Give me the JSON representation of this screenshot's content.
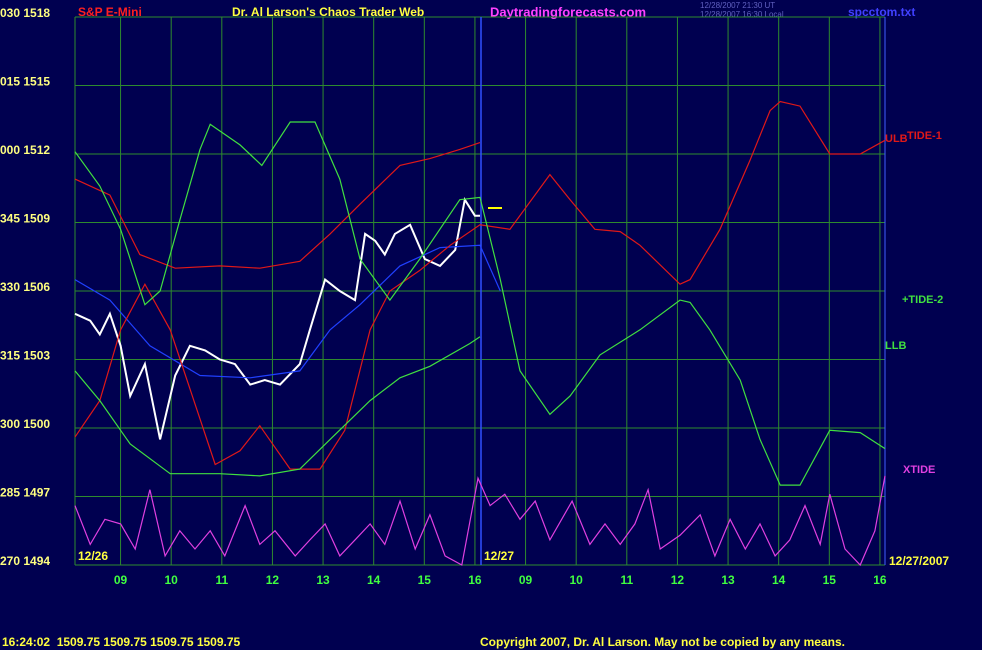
{
  "chart_data": {
    "type": "line",
    "title": "Dr. Al Larson's Chaos Trader Web",
    "symbol": "S&P E-Mini",
    "site": "Daytradingforecasts.com",
    "timestamps": [
      "12/28/2007 21:30 UT",
      "12/28/2007 16:30 Local"
    ],
    "file": "spcctom.txt",
    "date_labels": [
      "12/26",
      "12/27",
      "12/27/2007"
    ],
    "status": "16:24:02  1509.75 1509.75 1509.75 1509.75",
    "copyright": "Copyright 2007, Dr. Al Larson. May not be copied by any means.",
    "grid": true,
    "xlim": [
      -0.9,
      15.1
    ],
    "xticks": [
      {
        "value": 0,
        "label": "09"
      },
      {
        "value": 1,
        "label": "10"
      },
      {
        "value": 2,
        "label": "11"
      },
      {
        "value": 3,
        "label": "12"
      },
      {
        "value": 4,
        "label": "13"
      },
      {
        "value": 5,
        "label": "14"
      },
      {
        "value": 6,
        "label": "15"
      },
      {
        "value": 7,
        "label": "16"
      },
      {
        "value": 8,
        "label": "09"
      },
      {
        "value": 9,
        "label": "10"
      },
      {
        "value": 10,
        "label": "11"
      },
      {
        "value": 11,
        "label": "12"
      },
      {
        "value": 12,
        "label": "13"
      },
      {
        "value": 13,
        "label": "14"
      },
      {
        "value": 14,
        "label": "15"
      },
      {
        "value": 15,
        "label": "16"
      }
    ],
    "ylim": [
      1494,
      1518
    ],
    "yticks": [
      {
        "value": 1494,
        "label": "270 1494"
      },
      {
        "value": 1497,
        "label": "285 1497"
      },
      {
        "value": 1500,
        "label": "300 1500"
      },
      {
        "value": 1503,
        "label": "315 1503"
      },
      {
        "value": 1506,
        "label": "330 1506"
      },
      {
        "value": 1509,
        "label": "345 1509"
      },
      {
        "value": 1512,
        "label": "000 1512"
      },
      {
        "value": 1515,
        "label": "015 1515"
      },
      {
        "value": 1518,
        "label": "030 1518"
      }
    ],
    "series": [
      {
        "color": "#ffffff",
        "x": [
          -0.9,
          -0.6,
          -0.41,
          -0.21,
          0,
          0.19,
          0.48,
          0.78,
          1.08,
          1.37,
          1.67,
          1.96,
          2.26,
          2.56,
          2.85,
          3.15,
          3.54,
          3.74,
          4.04,
          4.33,
          4.63,
          4.83,
          5.03,
          5.22,
          5.42,
          5.72,
          6.01,
          6.31,
          6.61,
          6.8,
          7.0,
          7.1
        ],
        "values": [
          1505.0,
          1504.7,
          1504.1,
          1505.0,
          1503.6,
          1501.4,
          1502.8,
          1499.5,
          1502.3,
          1503.6,
          1503.4,
          1503.0,
          1502.8,
          1501.9,
          1502.1,
          1501.9,
          1502.8,
          1504.3,
          1506.5,
          1506.0,
          1505.6,
          1508.5,
          1508.2,
          1507.6,
          1508.5,
          1508.9,
          1507.4,
          1507.1,
          1507.8,
          1510.0,
          1509.3,
          1509.3
        ]
      },
      {
        "color": "#2040ff",
        "x": [
          -0.9,
          -0.21,
          0.58,
          1.57,
          2.56,
          3.54,
          4.14,
          4.73,
          5.52,
          6.31,
          7.1,
          7.5
        ],
        "values": [
          1506.5,
          1505.6,
          1503.6,
          1502.3,
          1502.2,
          1502.5,
          1504.3,
          1505.4,
          1507.1,
          1507.9,
          1508.0,
          1506.0
        ]
      },
      {
        "name": "ULB",
        "color": "#e01818",
        "x": [
          -0.9,
          -0.21,
          0.38,
          1.08,
          1.96,
          2.75,
          3.54,
          4.14,
          4.73,
          5.52,
          6.11,
          6.7,
          7.1
        ],
        "values": [
          1510.9,
          1510.2,
          1507.6,
          1507.0,
          1507.1,
          1507.0,
          1507.3,
          1508.5,
          1509.8,
          1511.5,
          1511.8,
          1512.2,
          1512.5
        ]
      },
      {
        "name": "TIDE-1",
        "color": "#e01818",
        "x": [
          -0.9,
          -0.41,
          0,
          0.48,
          0.98,
          1.57,
          1.87,
          2.36,
          2.75,
          3.35,
          3.94,
          4.43,
          4.93,
          5.32,
          5.91,
          6.51,
          7.1,
          7.69,
          8.48,
          8.88,
          9.37,
          9.87,
          10.26,
          11.05,
          11.25,
          11.84,
          12.43,
          12.83,
          13.03,
          13.42,
          14.01,
          14.61,
          15.1
        ],
        "values": [
          1499.6,
          1501.2,
          1504.3,
          1506.3,
          1504.3,
          1500.4,
          1498.4,
          1499.0,
          1500.1,
          1498.2,
          1498.2,
          1499.9,
          1504.3,
          1506.0,
          1506.9,
          1508.0,
          1508.9,
          1508.7,
          1511.1,
          1510.0,
          1508.7,
          1508.6,
          1508.0,
          1506.3,
          1506.5,
          1508.7,
          1511.7,
          1513.9,
          1514.3,
          1514.1,
          1512.0,
          1512.0,
          1512.6
        ]
      },
      {
        "name": "+TIDE-2",
        "color": "#40e040",
        "x": [
          -0.9,
          -0.41,
          0,
          0.48,
          0.78,
          1.17,
          1.57,
          1.77,
          2.36,
          2.79,
          3.35,
          3.84,
          4.33,
          4.73,
          5.32,
          5.91,
          6.7,
          7.1,
          7.5,
          7.89,
          8.48,
          8.88,
          9.47,
          10.26,
          11.05,
          11.25,
          11.64,
          12.24,
          12.63,
          13.03,
          13.42,
          14.01,
          14.61,
          15.1
        ],
        "values": [
          1512.1,
          1510.6,
          1508.7,
          1505.4,
          1506.0,
          1509.1,
          1512.2,
          1513.3,
          1512.4,
          1511.5,
          1513.4,
          1513.4,
          1510.9,
          1507.4,
          1505.6,
          1507.4,
          1510.0,
          1510.1,
          1506.5,
          1502.5,
          1500.6,
          1501.4,
          1503.2,
          1504.3,
          1505.6,
          1505.5,
          1504.3,
          1502.1,
          1499.5,
          1497.5,
          1497.5,
          1499.9,
          1499.8,
          1499.1
        ]
      },
      {
        "name": "LLB",
        "color": "#40e040",
        "x": [
          -0.9,
          -0.41,
          0.19,
          0.98,
          1.96,
          2.75,
          3.54,
          4.14,
          4.93,
          5.52,
          6.11,
          6.9,
          7.1
        ],
        "values": [
          1502.5,
          1501.2,
          1499.3,
          1498.0,
          1498.0,
          1497.9,
          1498.2,
          1499.5,
          1501.2,
          1502.2,
          1502.7,
          1503.7,
          1504.0
        ]
      },
      {
        "name": "XTIDE",
        "color": "#e040e0",
        "x": [
          -0.9,
          -0.6,
          -0.31,
          0,
          0.29,
          0.58,
          0.88,
          1.17,
          1.47,
          1.77,
          2.06,
          2.46,
          2.75,
          3.05,
          3.45,
          3.74,
          4.04,
          4.33,
          4.63,
          4.93,
          5.22,
          5.52,
          5.82,
          6.11,
          6.41,
          6.74,
          7.06,
          7.3,
          7.59,
          7.89,
          8.19,
          8.48,
          8.92,
          9.27,
          9.57,
          9.87,
          10.16,
          10.42,
          10.66,
          11.05,
          11.45,
          11.74,
          12.04,
          12.34,
          12.63,
          12.93,
          13.22,
          13.52,
          13.82,
          14.01,
          14.31,
          14.61,
          14.9,
          15.1
        ],
        "values": [
          1496.6,
          1494.9,
          1496.0,
          1495.8,
          1494.7,
          1497.3,
          1494.4,
          1495.5,
          1494.7,
          1495.5,
          1494.4,
          1496.6,
          1494.9,
          1495.5,
          1494.4,
          1495.1,
          1495.8,
          1494.4,
          1495.1,
          1495.8,
          1494.9,
          1496.8,
          1494.7,
          1496.2,
          1494.4,
          1494.0,
          1497.8,
          1496.6,
          1497.1,
          1496.0,
          1496.8,
          1495.1,
          1496.8,
          1494.9,
          1495.8,
          1494.9,
          1495.8,
          1497.3,
          1494.7,
          1495.3,
          1496.2,
          1494.4,
          1496.0,
          1494.7,
          1495.8,
          1494.4,
          1495.1,
          1496.6,
          1494.9,
          1497.1,
          1494.7,
          1494.0,
          1495.5,
          1497.9
        ]
      }
    ]
  }
}
